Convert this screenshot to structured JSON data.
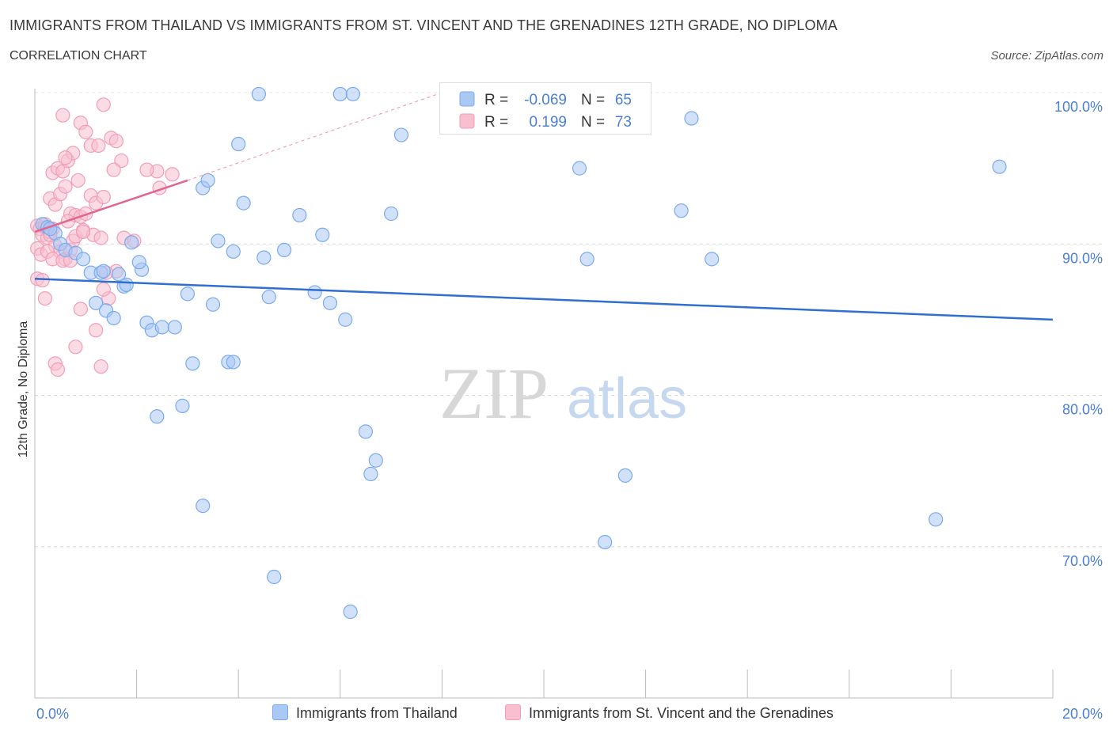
{
  "title": "IMMIGRANTS FROM THAILAND VS IMMIGRANTS FROM ST. VINCENT AND THE GRENADINES 12TH GRADE, NO DIPLOMA",
  "subtitle": "CORRELATION CHART",
  "source": "Source: ZipAtlas.com",
  "watermark": {
    "part1": "ZIP",
    "part2": "atlas"
  },
  "colors": {
    "thailand": "#7aaaf0",
    "thailand_fill": "#aac8f4",
    "thailand_line": "#2f6fcf",
    "vincent": "#f29db6",
    "vincent_fill": "#f7bfd0",
    "vincent_line": "#e0668f",
    "axis_text": "#4a7fd4"
  },
  "legend": {
    "r_label": "R =",
    "n_label": "N =",
    "thailand_r": "-0.069",
    "thailand_n": "65",
    "vincent_r": "0.199",
    "vincent_n": "73"
  },
  "bottom_legend": {
    "thailand": "Immigrants from Thailand",
    "vincent": "Immigrants from St. Vincent and the Grenadines"
  },
  "chart_data": {
    "type": "scatter",
    "title": "IMMIGRANTS FROM THAILAND VS IMMIGRANTS FROM ST. VINCENT AND THE GRENADINES 12TH GRADE, NO DIPLOMA",
    "xlabel": "",
    "ylabel": "12th Grade, No Diploma",
    "xlim": [
      0,
      20
    ],
    "ylim": [
      60,
      100
    ],
    "x_tick_labels": [
      "0.0%",
      "20.0%"
    ],
    "y_ticks": [
      70,
      80,
      90,
      100
    ],
    "y_tick_labels": [
      "70.0%",
      "80.0%",
      "90.0%",
      "100.0%"
    ],
    "series": [
      {
        "name": "Immigrants from Thailand",
        "trend": {
          "x": [
            0,
            20
          ],
          "y": [
            87.7,
            85.0
          ]
        },
        "points": [
          [
            0.15,
            91.3
          ],
          [
            0.25,
            91.1
          ],
          [
            0.4,
            90.7
          ],
          [
            0.5,
            90.0
          ],
          [
            0.6,
            89.6
          ],
          [
            0.8,
            89.4
          ],
          [
            0.95,
            89.0
          ],
          [
            1.1,
            88.1
          ],
          [
            1.3,
            88.1
          ],
          [
            1.65,
            88.0
          ],
          [
            1.75,
            87.2
          ],
          [
            2.1,
            88.3
          ],
          [
            2.05,
            88.8
          ],
          [
            1.9,
            90.1
          ],
          [
            1.2,
            86.1
          ],
          [
            1.4,
            85.6
          ],
          [
            1.55,
            85.1
          ],
          [
            2.2,
            84.8
          ],
          [
            2.3,
            84.3
          ],
          [
            2.5,
            84.5
          ],
          [
            2.75,
            84.5
          ],
          [
            3.0,
            86.7
          ],
          [
            3.5,
            86.0
          ],
          [
            3.1,
            82.1
          ],
          [
            3.8,
            82.2
          ],
          [
            3.9,
            82.2
          ],
          [
            2.4,
            78.6
          ],
          [
            2.9,
            79.3
          ],
          [
            3.3,
            93.7
          ],
          [
            3.4,
            94.2
          ],
          [
            3.6,
            90.2
          ],
          [
            3.9,
            89.5
          ],
          [
            4.0,
            96.6
          ],
          [
            4.1,
            92.7
          ],
          [
            4.5,
            89.1
          ],
          [
            4.6,
            86.5
          ],
          [
            4.9,
            89.6
          ],
          [
            5.2,
            91.9
          ],
          [
            5.5,
            86.8
          ],
          [
            5.65,
            90.6
          ],
          [
            5.8,
            86.1
          ],
          [
            6.1,
            85.0
          ],
          [
            4.4,
            99.9
          ],
          [
            6.0,
            99.9
          ],
          [
            6.25,
            99.9
          ],
          [
            7.0,
            92.0
          ],
          [
            7.2,
            97.2
          ],
          [
            10.7,
            95.0
          ],
          [
            10.85,
            89.0
          ],
          [
            12.7,
            92.2
          ],
          [
            12.9,
            98.3
          ],
          [
            13.3,
            89.0
          ],
          [
            18.95,
            95.1
          ],
          [
            6.5,
            77.6
          ],
          [
            6.7,
            75.7
          ],
          [
            6.6,
            74.8
          ],
          [
            11.6,
            74.7
          ],
          [
            11.2,
            70.3
          ],
          [
            17.7,
            71.8
          ],
          [
            3.3,
            72.7
          ],
          [
            4.7,
            68.0
          ],
          [
            6.2,
            65.7
          ],
          [
            0.3,
            91.0
          ],
          [
            1.8,
            87.3
          ],
          [
            1.35,
            88.2
          ]
        ]
      },
      {
        "name": "Immigrants from St. Vincent and the Grenadines",
        "trend": {
          "x": [
            0,
            3.0
          ],
          "y": [
            90.8,
            94.2
          ]
        },
        "trend_extension": {
          "x": [
            3.0,
            8.0
          ],
          "y": [
            94.2,
            100.0
          ]
        },
        "points": [
          [
            0.05,
            91.2
          ],
          [
            0.1,
            91.0
          ],
          [
            0.15,
            90.6
          ],
          [
            0.2,
            91.1
          ],
          [
            0.25,
            90.4
          ],
          [
            0.3,
            90.8
          ],
          [
            0.35,
            91.0
          ],
          [
            0.4,
            89.9
          ],
          [
            0.5,
            89.5
          ],
          [
            0.6,
            89.0
          ],
          [
            0.7,
            89.6
          ],
          [
            0.75,
            90.2
          ],
          [
            0.8,
            90.5
          ],
          [
            0.05,
            89.7
          ],
          [
            0.12,
            89.3
          ],
          [
            0.25,
            89.5
          ],
          [
            0.35,
            89.0
          ],
          [
            0.55,
            88.9
          ],
          [
            0.7,
            88.9
          ],
          [
            0.05,
            87.7
          ],
          [
            0.15,
            87.6
          ],
          [
            0.2,
            86.4
          ],
          [
            0.3,
            93.0
          ],
          [
            0.4,
            92.6
          ],
          [
            0.5,
            93.3
          ],
          [
            0.6,
            93.8
          ],
          [
            0.7,
            92.0
          ],
          [
            0.8,
            91.9
          ],
          [
            0.9,
            91.8
          ],
          [
            1.0,
            92.0
          ],
          [
            1.1,
            93.2
          ],
          [
            1.2,
            92.7
          ],
          [
            1.35,
            93.1
          ],
          [
            0.35,
            94.7
          ],
          [
            0.45,
            95.0
          ],
          [
            0.55,
            94.8
          ],
          [
            0.65,
            95.5
          ],
          [
            0.75,
            96.0
          ],
          [
            0.85,
            94.2
          ],
          [
            0.6,
            95.7
          ],
          [
            0.55,
            98.5
          ],
          [
            0.9,
            98.0
          ],
          [
            1.0,
            97.4
          ],
          [
            1.1,
            96.5
          ],
          [
            1.25,
            96.5
          ],
          [
            1.35,
            99.2
          ],
          [
            1.5,
            97.0
          ],
          [
            1.6,
            96.8
          ],
          [
            1.7,
            95.5
          ],
          [
            1.55,
            94.9
          ],
          [
            2.4,
            94.8
          ],
          [
            2.45,
            93.7
          ],
          [
            2.7,
            94.6
          ],
          [
            0.95,
            90.9
          ],
          [
            1.15,
            90.6
          ],
          [
            1.3,
            90.4
          ],
          [
            1.75,
            90.4
          ],
          [
            0.9,
            85.7
          ],
          [
            1.2,
            84.3
          ],
          [
            1.45,
            86.4
          ],
          [
            1.35,
            87.0
          ],
          [
            0.8,
            83.2
          ],
          [
            0.4,
            82.1
          ],
          [
            0.45,
            81.7
          ],
          [
            1.3,
            81.9
          ],
          [
            1.6,
            88.2
          ],
          [
            1.95,
            90.2
          ],
          [
            2.2,
            94.9
          ],
          [
            0.3,
            90.6
          ],
          [
            0.65,
            91.5
          ],
          [
            0.95,
            90.8
          ],
          [
            1.4,
            88.1
          ],
          [
            0.2,
            91.3
          ]
        ]
      }
    ]
  }
}
